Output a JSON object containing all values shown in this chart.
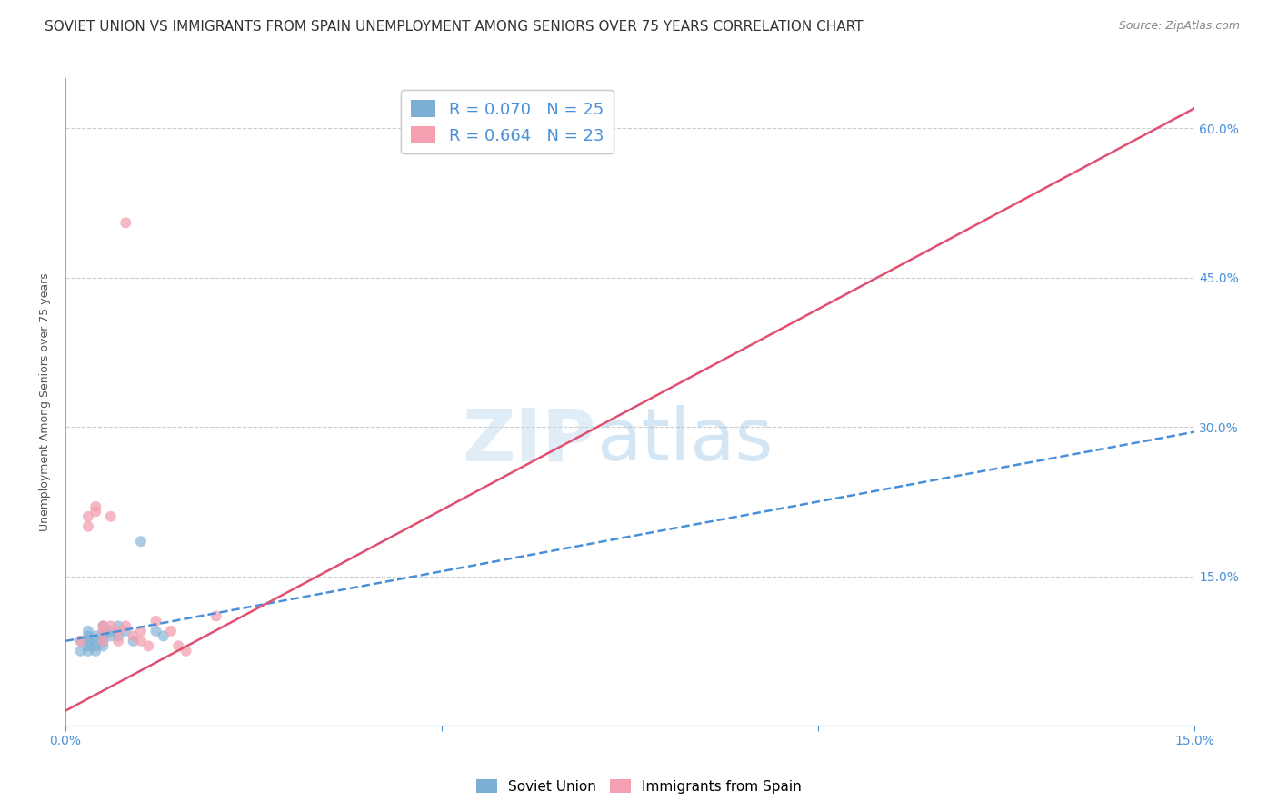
{
  "title": "SOVIET UNION VS IMMIGRANTS FROM SPAIN UNEMPLOYMENT AMONG SENIORS OVER 75 YEARS CORRELATION CHART",
  "source": "Source: ZipAtlas.com",
  "ylabel": "Unemployment Among Seniors over 75 years",
  "xlim": [
    0.0,
    0.15
  ],
  "ylim": [
    0.0,
    0.65
  ],
  "yticks": [
    0.0,
    0.15,
    0.3,
    0.45,
    0.6
  ],
  "ytick_labels": [
    "",
    "15.0%",
    "30.0%",
    "45.0%",
    "60.0%"
  ],
  "xticks": [
    0.0,
    0.05,
    0.1,
    0.15
  ],
  "xtick_labels": [
    "0.0%",
    "",
    "",
    "15.0%"
  ],
  "watermark_zip": "ZIP",
  "watermark_atlas": "atlas",
  "legend_blue_label": "R = 0.070   N = 25",
  "legend_pink_label": "R = 0.664   N = 23",
  "legend_bottom_blue": "Soviet Union",
  "legend_bottom_pink": "Immigrants from Spain",
  "blue_color": "#7bafd4",
  "pink_color": "#f4a0b0",
  "blue_line_color": "#4a90d9",
  "pink_line_color": "#e05070",
  "scatter_blue_x": [
    0.002,
    0.002,
    0.003,
    0.003,
    0.003,
    0.003,
    0.003,
    0.004,
    0.004,
    0.004,
    0.004,
    0.005,
    0.005,
    0.005,
    0.005,
    0.005,
    0.006,
    0.006,
    0.007,
    0.007,
    0.008,
    0.009,
    0.01,
    0.012,
    0.013
  ],
  "scatter_blue_y": [
    0.085,
    0.075,
    0.095,
    0.09,
    0.085,
    0.08,
    0.075,
    0.09,
    0.085,
    0.08,
    0.075,
    0.1,
    0.095,
    0.09,
    0.085,
    0.08,
    0.095,
    0.09,
    0.1,
    0.09,
    0.095,
    0.085,
    0.185,
    0.095,
    0.09
  ],
  "scatter_pink_x": [
    0.002,
    0.003,
    0.003,
    0.004,
    0.004,
    0.005,
    0.005,
    0.005,
    0.006,
    0.006,
    0.007,
    0.007,
    0.008,
    0.008,
    0.009,
    0.01,
    0.01,
    0.011,
    0.012,
    0.014,
    0.015,
    0.016,
    0.02
  ],
  "scatter_pink_y": [
    0.085,
    0.21,
    0.2,
    0.22,
    0.215,
    0.1,
    0.095,
    0.085,
    0.21,
    0.1,
    0.095,
    0.085,
    0.1,
    0.505,
    0.09,
    0.095,
    0.085,
    0.08,
    0.105,
    0.095,
    0.08,
    0.075,
    0.11
  ],
  "blue_trend_x": [
    0.0,
    0.15
  ],
  "blue_trend_y": [
    0.085,
    0.295
  ],
  "pink_trend_x": [
    0.0,
    0.15
  ],
  "pink_trend_y": [
    0.015,
    0.62
  ],
  "background_color": "#ffffff",
  "grid_color": "#cccccc",
  "title_fontsize": 11,
  "source_fontsize": 9,
  "label_fontsize": 9,
  "tick_fontsize": 10,
  "marker_size": 75
}
